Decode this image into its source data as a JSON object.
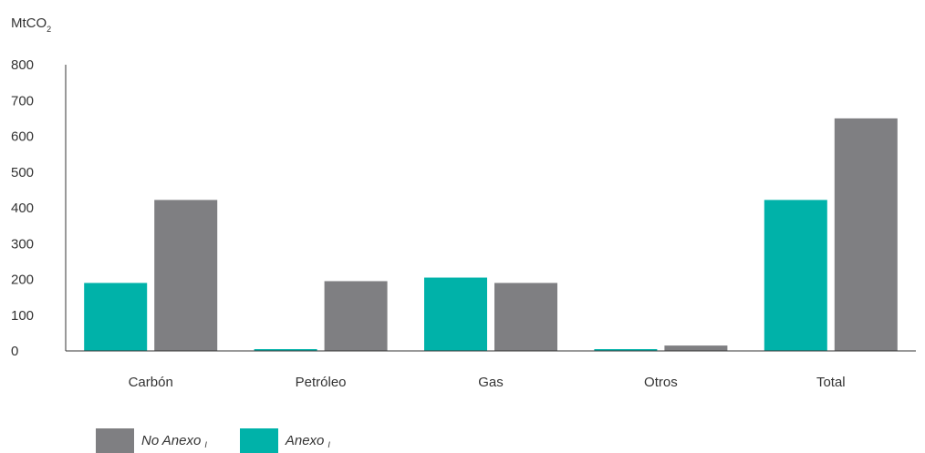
{
  "chart_data": {
    "type": "bar",
    "unit_label": {
      "base": "MtCO",
      "sub": "2"
    },
    "categories": [
      "Carbón",
      "Petróleo",
      "Gas",
      "Otros",
      "Total"
    ],
    "series": [
      {
        "name": "Anexo I",
        "color": "#00b2a9",
        "values": [
          190,
          5,
          205,
          5,
          422
        ]
      },
      {
        "name": "No Anexo I",
        "color": "#7f7f82",
        "values": [
          422,
          195,
          190,
          15,
          650
        ]
      }
    ],
    "ylim": [
      0,
      800
    ],
    "yticks": [
      0,
      100,
      200,
      300,
      400,
      500,
      600,
      700,
      800
    ],
    "grid": false
  },
  "legend": [
    {
      "label": "No Anexo",
      "sub": "I",
      "color": "#7f7f82"
    },
    {
      "label": "Anexo",
      "sub": "I",
      "color": "#00b2a9"
    }
  ]
}
